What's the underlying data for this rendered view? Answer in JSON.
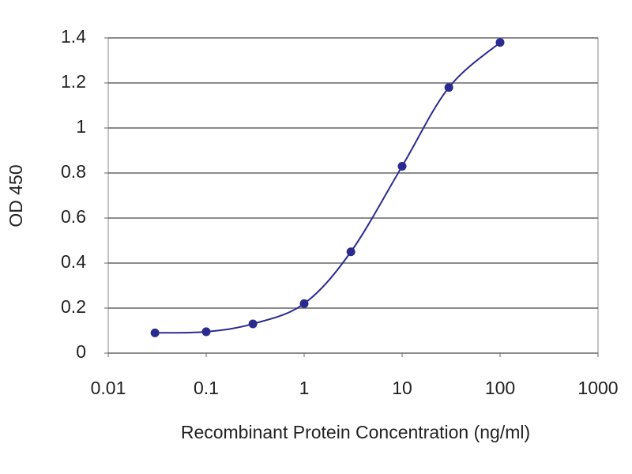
{
  "chart_data": {
    "type": "line",
    "x_label": "Recombinant Protein Concentration (ng/ml)",
    "y_label": "OD 450",
    "x": [
      0.03,
      0.1,
      0.3,
      1,
      3,
      10,
      30,
      100
    ],
    "series": [
      {
        "name": "OD 450",
        "color": "#2b2b8f",
        "values": [
          0.09,
          0.095,
          0.13,
          0.22,
          0.45,
          0.83,
          1.18,
          1.38
        ]
      }
    ],
    "xscale": "log",
    "xlim": [
      0.01,
      1000
    ],
    "xticks": [
      0.01,
      0.1,
      1,
      10,
      100,
      1000
    ],
    "ylim": [
      0,
      1.4
    ],
    "yticks": [
      0,
      0.2,
      0.4,
      0.6,
      0.8,
      1,
      1.2,
      1.4
    ],
    "grid": true
  }
}
